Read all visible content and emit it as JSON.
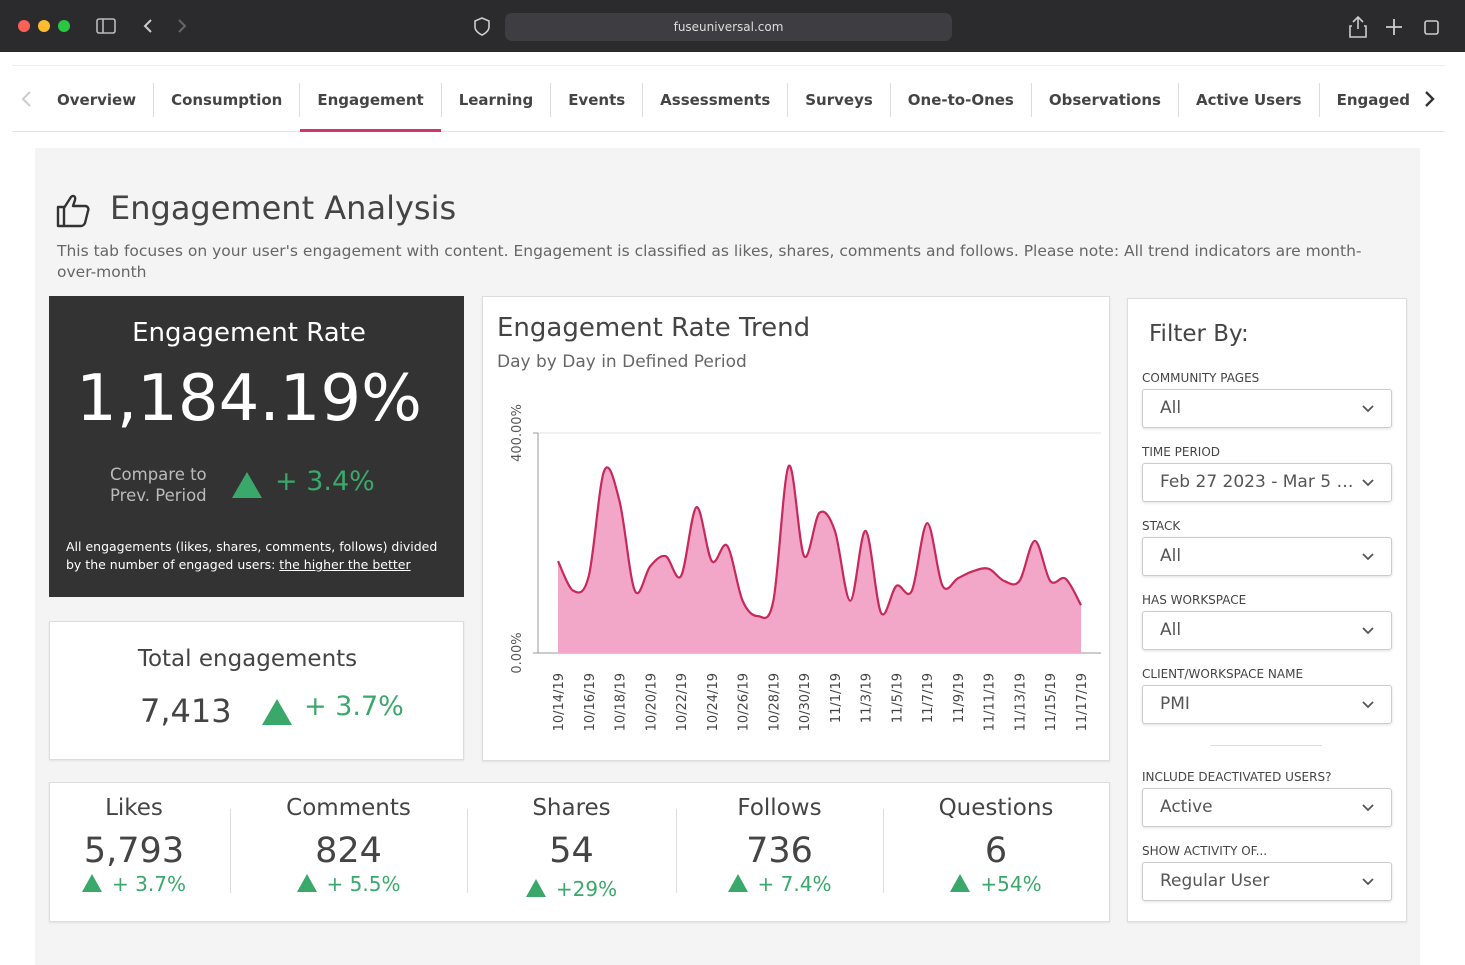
{
  "browser": {
    "url": "fuseuniversal.com"
  },
  "tabs": {
    "items": [
      "Overview",
      "Consumption",
      "Engagement",
      "Learning",
      "Events",
      "Assessments",
      "Surveys",
      "One-to-Ones",
      "Observations",
      "Active Users",
      "Engaged Users Overview"
    ],
    "active": 2
  },
  "header": {
    "title": "Engagement Analysis",
    "description": "This tab focuses on your user's engagement with content. Engagement is classified as likes, shares, comments and follows. Please note: All trend indicators are month-over-month"
  },
  "rate_card": {
    "title": "Engagement Rate",
    "value": "1,184.19%",
    "compare_label": [
      "Compare to",
      "Prev. Period"
    ],
    "change": "+ 3.4%",
    "note": "All engagements (likes, shares, comments, follows) divided by the number of engaged users:",
    "note_link": "the higher the better"
  },
  "total_card": {
    "title": "Total engagements",
    "value": "7,413",
    "change": "+ 3.7%"
  },
  "metrics": [
    {
      "label": "Likes",
      "value": "5,793",
      "change": "+ 3.7%"
    },
    {
      "label": "Comments",
      "value": "824",
      "change": "+ 5.5%"
    },
    {
      "label": "Shares",
      "value": "54",
      "change": "+29%"
    },
    {
      "label": "Follows",
      "value": "736",
      "change": "+ 7.4%"
    },
    {
      "label": "Questions",
      "value": "6",
      "change": "+54%"
    }
  ],
  "chart_data": {
    "type": "area",
    "title": "Engagement Rate Trend",
    "subtitle": "Day by Day in Defined Period",
    "categories": [
      "10/14/19",
      null,
      "10/16/19",
      null,
      "10/18/19",
      null,
      "10/20/19",
      null,
      "10/22/19",
      null,
      "10/24/19",
      null,
      "10/26/19",
      null,
      "10/28/19",
      null,
      "10/30/19",
      null,
      "11/1/19",
      null,
      "11/3/19",
      null,
      "11/5/19",
      null,
      "11/7/19",
      null,
      "11/9/19",
      null,
      "11/11/19",
      null,
      "11/13/19",
      null,
      "11/15/19",
      null,
      "11/17/19"
    ],
    "values": [
      167,
      113,
      140,
      331,
      276,
      113,
      158,
      176,
      140,
      265,
      167,
      195,
      95,
      67,
      95,
      340,
      176,
      255,
      222,
      95,
      222,
      73,
      122,
      113,
      236,
      122,
      136,
      149,
      153,
      131,
      131,
      204,
      131,
      135,
      87
    ],
    "color": "#f2a7c8",
    "line_color": "#c8285a",
    "ylim": [
      0,
      400
    ],
    "yticks": [
      {
        "value": 0,
        "label": "0.00%"
      },
      {
        "value": 400,
        "label": "400.00%"
      }
    ],
    "grid": true
  },
  "filters": {
    "title": "Filter By:",
    "fields": [
      {
        "label": "COMMUNITY PAGES",
        "value": "All"
      },
      {
        "label": "TIME PERIOD",
        "value": "Feb 27 2023 - Mar 5 …"
      },
      {
        "label": "STACK",
        "value": "All"
      },
      {
        "label": "HAS WORKSPACE",
        "value": "All"
      },
      {
        "label": "CLIENT/WORKSPACE NAME",
        "value": "PMI"
      },
      {
        "label": "INCLUDE DEACTIVATED USERS?",
        "value": "Active"
      },
      {
        "label": "SHOW ACTIVITY OF...",
        "value": "Regular User"
      }
    ]
  }
}
